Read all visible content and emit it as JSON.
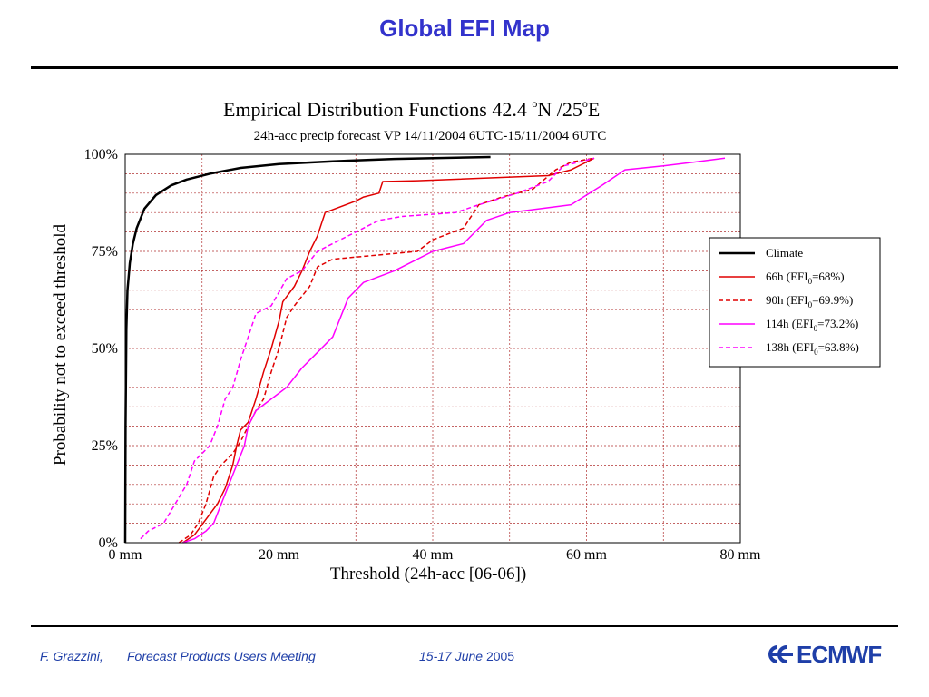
{
  "slide": {
    "title": "Global EFI Map",
    "footer": {
      "author": "F. Grazzini,",
      "meeting": "Forecast Products Users Meeting",
      "date_italic": "15-17 June",
      "year": "2005"
    },
    "logo_text": "ECMWF"
  },
  "colors": {
    "title": "#3333cc",
    "climate": "#000000",
    "h66": "#e00000",
    "h90": "#e00000",
    "h114": "#ff00ff",
    "h138": "#ff00ff",
    "grid": "#b03030"
  },
  "chart_data": {
    "type": "line",
    "title": "Empirical Distribution Functions 42.4 °N /25°E",
    "title_parts": {
      "pre": "Empirical Distribution Functions 42.4 ",
      "sup1": "o",
      "mid": "N /25",
      "sup2": "o",
      "post": "E"
    },
    "subtitle": "24h-acc precip forecast VP 14/11/2004 6UTC-15/11/2004 6UTC",
    "xlabel": "Threshold (24h-acc [06-06])",
    "ylabel": "Probability not to exceed threshold",
    "xlim": [
      0,
      80
    ],
    "ylim": [
      0,
      100
    ],
    "x_ticks": [
      0,
      20,
      40,
      60,
      80
    ],
    "x_tick_labels": [
      "0 mm",
      "20 mm",
      "40 mm",
      "60 mm",
      "80 mm"
    ],
    "y_ticks": [
      0,
      25,
      50,
      75,
      100
    ],
    "y_tick_labels": [
      "0%",
      "25%",
      "50%",
      "75%",
      "100%"
    ],
    "grid": true,
    "legend_position": "right",
    "series": [
      {
        "name": "Climate",
        "legend": {
          "pre": "Climate",
          "sub": "",
          "post": ""
        },
        "color": "#000000",
        "dash": false,
        "width": 2.5,
        "points": [
          [
            0,
            0
          ],
          [
            0.05,
            30
          ],
          [
            0.15,
            55
          ],
          [
            0.3,
            65
          ],
          [
            0.6,
            72
          ],
          [
            1,
            77
          ],
          [
            1.5,
            81
          ],
          [
            2.5,
            86
          ],
          [
            4,
            89.5
          ],
          [
            6,
            92
          ],
          [
            8,
            93.5
          ],
          [
            11,
            95
          ],
          [
            15,
            96.5
          ],
          [
            20,
            97.5
          ],
          [
            27,
            98.2
          ],
          [
            35,
            98.8
          ],
          [
            47.5,
            99.3
          ]
        ]
      },
      {
        "name": "66h (EFI0=68%)",
        "legend": {
          "pre": "66h (EFI",
          "sub": "0",
          "post": "=68%)"
        },
        "color": "#e00000",
        "dash": false,
        "width": 1.5,
        "points": [
          [
            7.5,
            0
          ],
          [
            9,
            2
          ],
          [
            10.5,
            6
          ],
          [
            12,
            10
          ],
          [
            13,
            14
          ],
          [
            14,
            20
          ],
          [
            14.5,
            25
          ],
          [
            15,
            29
          ],
          [
            16,
            31
          ],
          [
            17,
            37
          ],
          [
            18,
            44
          ],
          [
            19,
            50
          ],
          [
            20,
            57
          ],
          [
            20.5,
            62
          ],
          [
            22,
            66
          ],
          [
            23,
            70
          ],
          [
            24,
            75
          ],
          [
            25,
            79
          ],
          [
            26,
            85
          ],
          [
            30,
            88
          ],
          [
            31,
            89
          ],
          [
            33,
            90
          ],
          [
            33.5,
            93
          ],
          [
            38,
            93.2
          ],
          [
            55,
            94.5
          ],
          [
            58,
            96
          ],
          [
            61,
            99
          ]
        ]
      },
      {
        "name": "90h (EFI0=69.9%)",
        "legend": {
          "pre": "90h (EFI",
          "sub": "0",
          "post": "=69.9%)"
        },
        "color": "#e00000",
        "dash": true,
        "width": 1.5,
        "points": [
          [
            7,
            0
          ],
          [
            8.5,
            2
          ],
          [
            9.5,
            5
          ],
          [
            10.5,
            10
          ],
          [
            11.5,
            17
          ],
          [
            12.5,
            20
          ],
          [
            14,
            23
          ],
          [
            15,
            26
          ],
          [
            16,
            30
          ],
          [
            17,
            34
          ],
          [
            18,
            37
          ],
          [
            19,
            44
          ],
          [
            20,
            50
          ],
          [
            21,
            58
          ],
          [
            22,
            61
          ],
          [
            24,
            66
          ],
          [
            25,
            71
          ],
          [
            27,
            73
          ],
          [
            38,
            75
          ],
          [
            40,
            78
          ],
          [
            44,
            81
          ],
          [
            46,
            87
          ],
          [
            49,
            89
          ],
          [
            53,
            91
          ],
          [
            56,
            96
          ],
          [
            58,
            98
          ],
          [
            61,
            99
          ]
        ]
      },
      {
        "name": "114h (EFI0=73.2%)",
        "legend": {
          "pre": "114h (EFI",
          "sub": "0",
          "post": "=73.2%)"
        },
        "color": "#ff00ff",
        "dash": false,
        "width": 1.5,
        "points": [
          [
            7.5,
            0
          ],
          [
            9,
            1
          ],
          [
            10.5,
            3
          ],
          [
            11.5,
            5
          ],
          [
            12.5,
            10
          ],
          [
            13.5,
            15
          ],
          [
            14.5,
            20
          ],
          [
            15.5,
            25
          ],
          [
            16,
            30
          ],
          [
            17,
            34
          ],
          [
            19,
            37
          ],
          [
            21,
            40
          ],
          [
            23,
            45
          ],
          [
            25,
            49
          ],
          [
            27,
            53
          ],
          [
            29,
            63
          ],
          [
            31,
            67
          ],
          [
            35,
            70
          ],
          [
            38,
            73
          ],
          [
            40,
            75
          ],
          [
            44,
            77
          ],
          [
            47,
            83
          ],
          [
            50,
            85
          ],
          [
            58,
            87
          ],
          [
            62,
            92
          ],
          [
            65,
            96
          ],
          [
            70,
            97
          ],
          [
            78,
            99
          ]
        ]
      },
      {
        "name": "138h (EFI0=63.8%)",
        "legend": {
          "pre": "138h (EFI",
          "sub": "0",
          "post": "=63.8%)"
        },
        "color": "#ff00ff",
        "dash": true,
        "width": 1.5,
        "points": [
          [
            2,
            1
          ],
          [
            3,
            3
          ],
          [
            5,
            5
          ],
          [
            6.5,
            10
          ],
          [
            8,
            15
          ],
          [
            9,
            21
          ],
          [
            10,
            23
          ],
          [
            11,
            25
          ],
          [
            12,
            30
          ],
          [
            13,
            37
          ],
          [
            14,
            40
          ],
          [
            15,
            47
          ],
          [
            16,
            53
          ],
          [
            17,
            59
          ],
          [
            19,
            61
          ],
          [
            21,
            68
          ],
          [
            23,
            70
          ],
          [
            25,
            75
          ],
          [
            27,
            77
          ],
          [
            30,
            80
          ],
          [
            33,
            83
          ],
          [
            36,
            84
          ],
          [
            43,
            85
          ],
          [
            46,
            87
          ],
          [
            51,
            90
          ],
          [
            55,
            93
          ],
          [
            57,
            97
          ],
          [
            61,
            99
          ]
        ]
      }
    ]
  }
}
